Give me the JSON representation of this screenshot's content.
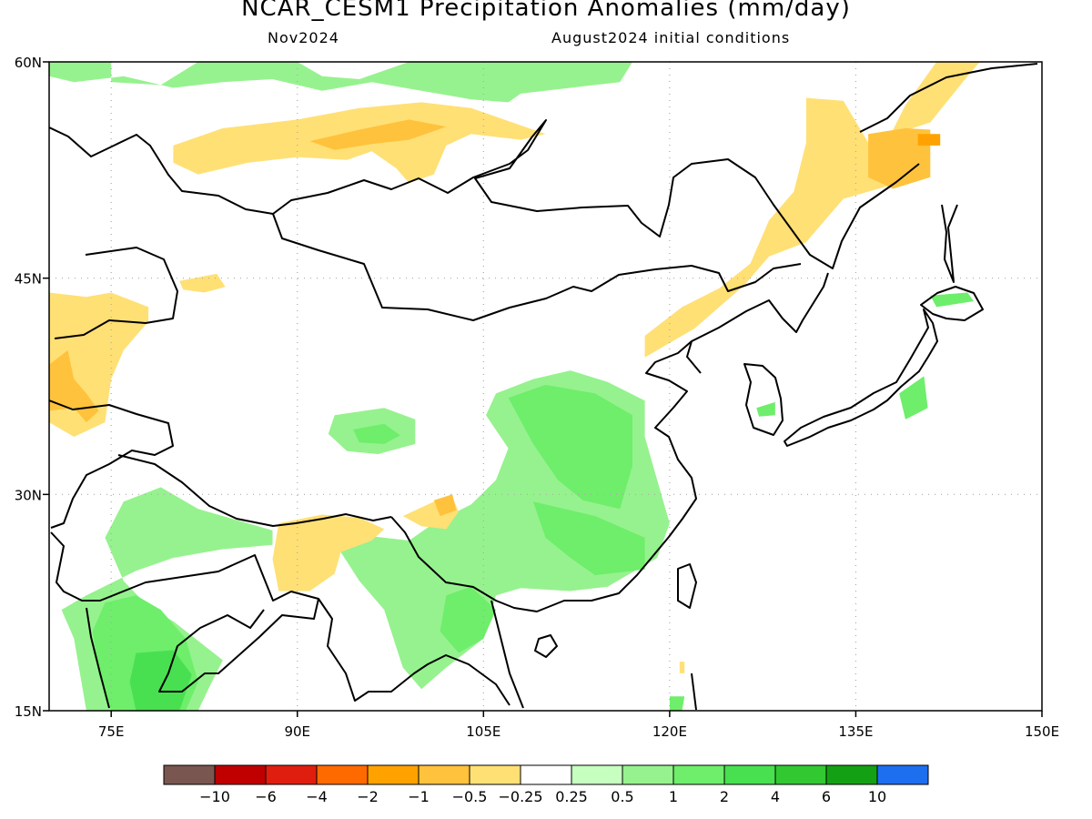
{
  "header": {
    "title": "NCAR_CESM1 Precipitation Anomalies (mm/day)",
    "valid_month": "Nov2024",
    "init": "August2024 initial conditions"
  },
  "map": {
    "lon_range": [
      70,
      150
    ],
    "lat_range": [
      15,
      60
    ],
    "lat_ticks": [
      {
        "v": 15,
        "t": "15N"
      },
      {
        "v": 30,
        "t": "30N"
      },
      {
        "v": 45,
        "t": "45N"
      },
      {
        "v": 60,
        "t": "60N"
      }
    ],
    "lon_ticks": [
      {
        "v": 75,
        "t": "75E"
      },
      {
        "v": 90,
        "t": "90E"
      },
      {
        "v": 105,
        "t": "105E"
      },
      {
        "v": 120,
        "t": "120E"
      },
      {
        "v": 135,
        "t": "135E"
      },
      {
        "v": 150,
        "t": "150E"
      }
    ],
    "anomaly_regions": [
      {
        "name": "siberia-north-wet",
        "value": 0.5,
        "lonlat": [
          [
            70,
            60
          ],
          [
            75,
            60
          ],
          [
            75,
            58.6
          ],
          [
            79,
            58.4
          ],
          [
            82,
            60
          ],
          [
            90,
            60
          ],
          [
            92,
            59
          ],
          [
            95,
            58.8
          ],
          [
            99,
            60
          ],
          [
            117,
            60
          ],
          [
            116,
            58.6
          ],
          [
            112,
            58.2
          ],
          [
            108,
            57.8
          ],
          [
            107,
            57.2
          ],
          [
            104,
            57.4
          ],
          [
            100,
            58
          ],
          [
            96,
            58.6
          ],
          [
            92,
            58
          ],
          [
            88,
            58.8
          ],
          [
            84,
            58.6
          ],
          [
            80,
            58.2
          ],
          [
            76,
            59
          ],
          [
            72,
            58.6
          ],
          [
            70,
            59
          ]
        ]
      },
      {
        "name": "mongolia-north-dry",
        "value": -0.5,
        "lonlat": [
          [
            80,
            54.2
          ],
          [
            84,
            55.4
          ],
          [
            90,
            56
          ],
          [
            95,
            56.8
          ],
          [
            100,
            57.2
          ],
          [
            104,
            56.8
          ],
          [
            108,
            55.6
          ],
          [
            110,
            55
          ],
          [
            108,
            54.6
          ],
          [
            104,
            55
          ],
          [
            102,
            54.2
          ],
          [
            101,
            52.2
          ],
          [
            99,
            51.6
          ],
          [
            98,
            52.6
          ],
          [
            96,
            53.8
          ],
          [
            94,
            53.2
          ],
          [
            90,
            53.4
          ],
          [
            86,
            53
          ],
          [
            82,
            52.2
          ],
          [
            80,
            53
          ]
        ]
      },
      {
        "name": "mongolia-north-dry-core",
        "value": -1,
        "lonlat": [
          [
            91,
            54.5
          ],
          [
            95,
            55.3
          ],
          [
            99,
            56
          ],
          [
            102,
            55.5
          ],
          [
            99,
            54.6
          ],
          [
            96,
            54.3
          ],
          [
            93,
            53.9
          ]
        ]
      },
      {
        "name": "manchuria-dry",
        "value": -0.5,
        "lonlat": [
          [
            131,
            57.5
          ],
          [
            134,
            57.3
          ],
          [
            136,
            54.4
          ],
          [
            141,
            55.8
          ],
          [
            144,
            59
          ],
          [
            145,
            60
          ],
          [
            141.5,
            60
          ],
          [
            139,
            57
          ],
          [
            138,
            55.3
          ],
          [
            138,
            51.5
          ],
          [
            134,
            50.5
          ],
          [
            131,
            47.5
          ],
          [
            128,
            46.5
          ],
          [
            126,
            44.5
          ],
          [
            124,
            43
          ],
          [
            122,
            41.5
          ],
          [
            118,
            39.5
          ],
          [
            118,
            41
          ],
          [
            121,
            43
          ],
          [
            124,
            44.3
          ],
          [
            126.5,
            46
          ],
          [
            128,
            49
          ],
          [
            130,
            51
          ],
          [
            131,
            54.4
          ]
        ]
      },
      {
        "name": "okhotsk-dry-core",
        "value": -1,
        "lonlat": [
          [
            136,
            55
          ],
          [
            139,
            55.4
          ],
          [
            141,
            55.3
          ],
          [
            141,
            52
          ],
          [
            138,
            51.2
          ],
          [
            136,
            52
          ]
        ]
      },
      {
        "name": "okhotsk-dry-patch",
        "value": -2,
        "lonlat": [
          [
            140,
            55
          ],
          [
            141.8,
            55
          ],
          [
            141.8,
            54.2
          ],
          [
            140,
            54.2
          ]
        ]
      },
      {
        "name": "central-asia-dry",
        "value": -0.5,
        "lonlat": [
          [
            70,
            44
          ],
          [
            73,
            43.7
          ],
          [
            75,
            44
          ],
          [
            78,
            43
          ],
          [
            78,
            42
          ],
          [
            76,
            40
          ],
          [
            75,
            38
          ],
          [
            74.5,
            35
          ],
          [
            72,
            34
          ],
          [
            70,
            35
          ]
        ]
      },
      {
        "name": "central-asia-dry-core",
        "value": -1,
        "lonlat": [
          [
            70,
            39
          ],
          [
            71.5,
            40
          ],
          [
            72,
            38
          ],
          [
            73,
            37
          ],
          [
            74,
            35.8
          ],
          [
            73,
            35
          ],
          [
            72,
            36
          ],
          [
            70,
            35.8
          ]
        ]
      },
      {
        "name": "kazakh-dry",
        "value": -0.5,
        "lonlat": [
          [
            80.5,
            44.8
          ],
          [
            83.5,
            45.3
          ],
          [
            84.2,
            44.4
          ],
          [
            82.5,
            44
          ],
          [
            80.8,
            44.2
          ]
        ]
      },
      {
        "name": "tibet-wet",
        "value": 0.5,
        "lonlat": [
          [
            93,
            35.5
          ],
          [
            97,
            36
          ],
          [
            99.5,
            35.2
          ],
          [
            99.5,
            33.5
          ],
          [
            96.5,
            32.8
          ],
          [
            94,
            33
          ],
          [
            92.5,
            34.2
          ]
        ]
      },
      {
        "name": "tibet-wet-core",
        "value": 1,
        "lonlat": [
          [
            94.5,
            34.5
          ],
          [
            97,
            34.9
          ],
          [
            98.3,
            34.1
          ],
          [
            97,
            33.5
          ],
          [
            95,
            33.6
          ]
        ]
      },
      {
        "name": "china-wet",
        "value": 0.5,
        "lonlat": [
          [
            106,
            37
          ],
          [
            109,
            38
          ],
          [
            112,
            38.6
          ],
          [
            115,
            37.8
          ],
          [
            118,
            36.5
          ],
          [
            118,
            34
          ],
          [
            119,
            31
          ],
          [
            120,
            28
          ],
          [
            119,
            25.6
          ],
          [
            115,
            23.6
          ],
          [
            112,
            23.3
          ],
          [
            108,
            23.5
          ],
          [
            106,
            23
          ],
          [
            105,
            20
          ],
          [
            102,
            18
          ],
          [
            100,
            16.5
          ],
          [
            98.5,
            18
          ],
          [
            97,
            22
          ],
          [
            95,
            24
          ],
          [
            93.5,
            26
          ],
          [
            95,
            27.2
          ],
          [
            97,
            27
          ],
          [
            99,
            26.8
          ],
          [
            101,
            28
          ],
          [
            104,
            29.3
          ],
          [
            106,
            31
          ],
          [
            107,
            33.2
          ],
          [
            105.2,
            35.5
          ]
        ]
      },
      {
        "name": "china-wet-core",
        "value": 1,
        "lonlat": [
          [
            107,
            36.7
          ],
          [
            110,
            37.6
          ],
          [
            114,
            37
          ],
          [
            117,
            35.5
          ],
          [
            117,
            32
          ],
          [
            116,
            29
          ],
          [
            113,
            29.6
          ],
          [
            111,
            31
          ],
          [
            109,
            33.5
          ]
        ]
      },
      {
        "name": "south-china-wet-core",
        "value": 1,
        "lonlat": [
          [
            109,
            29.5
          ],
          [
            114,
            28.5
          ],
          [
            118,
            27
          ],
          [
            118,
            24.8
          ],
          [
            114,
            24.4
          ],
          [
            112,
            25.6
          ],
          [
            110,
            27
          ]
        ]
      },
      {
        "name": "indochina-wet-core",
        "value": 1,
        "lonlat": [
          [
            102,
            23
          ],
          [
            104,
            23.6
          ],
          [
            106,
            22
          ],
          [
            105,
            20
          ],
          [
            103,
            19
          ],
          [
            101.5,
            20.5
          ]
        ]
      },
      {
        "name": "india-wet",
        "value": 0.5,
        "lonlat": [
          [
            76,
            29.5
          ],
          [
            79,
            30.5
          ],
          [
            82,
            29
          ],
          [
            86,
            28
          ],
          [
            88,
            27.5
          ],
          [
            88,
            26.5
          ],
          [
            84,
            26.2
          ],
          [
            80,
            25.6
          ],
          [
            77,
            24.7
          ],
          [
            73,
            23
          ],
          [
            71,
            22
          ],
          [
            72,
            20
          ],
          [
            73,
            15
          ],
          [
            82,
            15
          ],
          [
            83,
            16.8
          ],
          [
            84,
            18.5
          ],
          [
            80,
            21.2
          ],
          [
            78,
            22.2
          ],
          [
            76,
            24
          ],
          [
            74.5,
            27
          ]
        ]
      },
      {
        "name": "india-wet-core",
        "value": 1,
        "lonlat": [
          [
            74.5,
            22.5
          ],
          [
            77,
            23
          ],
          [
            79,
            22
          ],
          [
            81,
            20
          ],
          [
            82,
            17
          ],
          [
            81,
            15
          ],
          [
            75,
            15
          ],
          [
            74,
            17.5
          ],
          [
            73.5,
            20.5
          ]
        ]
      },
      {
        "name": "india-wet-strong",
        "value": 2,
        "lonlat": [
          [
            77,
            19
          ],
          [
            80,
            19.2
          ],
          [
            81.5,
            17.5
          ],
          [
            80.5,
            15
          ],
          [
            77,
            15
          ],
          [
            76.5,
            17
          ]
        ]
      },
      {
        "name": "bengal-dry",
        "value": -0.5,
        "lonlat": [
          [
            88.5,
            28
          ],
          [
            92,
            28.6
          ],
          [
            95,
            28.4
          ],
          [
            97,
            27.6
          ],
          [
            96,
            26.8
          ],
          [
            93.5,
            26
          ],
          [
            93,
            24.5
          ],
          [
            91,
            23.3
          ],
          [
            88.5,
            23.3
          ],
          [
            88,
            25.5
          ]
        ]
      },
      {
        "name": "yunnan-dry",
        "value": -0.5,
        "lonlat": [
          [
            98.5,
            28.5
          ],
          [
            101,
            29.5
          ],
          [
            102.5,
            29.8
          ],
          [
            103,
            28.8
          ],
          [
            102,
            27.6
          ],
          [
            100,
            27.8
          ]
        ]
      },
      {
        "name": "yunnan-dry-core",
        "value": -1,
        "lonlat": [
          [
            101,
            29.6
          ],
          [
            102.5,
            30
          ],
          [
            102.8,
            28.9
          ],
          [
            101.5,
            28.5
          ]
        ]
      },
      {
        "name": "hokkaido-wet",
        "value": 1,
        "lonlat": [
          [
            141,
            43.8
          ],
          [
            144,
            44
          ],
          [
            144.5,
            43.4
          ],
          [
            141.5,
            43
          ]
        ]
      },
      {
        "name": "honshu-wet",
        "value": 1,
        "lonlat": [
          [
            138.5,
            37
          ],
          [
            140.5,
            38.2
          ],
          [
            140.8,
            36
          ],
          [
            139,
            35.2
          ]
        ]
      },
      {
        "name": "korea-wet",
        "value": 1,
        "lonlat": [
          [
            127,
            36
          ],
          [
            128.5,
            36.4
          ],
          [
            128.5,
            35.5
          ],
          [
            127.2,
            35.4
          ]
        ]
      },
      {
        "name": "taiwan-dry",
        "value": -0.5,
        "lonlat": [
          [
            120.8,
            18.4
          ],
          [
            121.2,
            18.4
          ],
          [
            121.2,
            17.6
          ],
          [
            120.8,
            17.6
          ]
        ]
      },
      {
        "name": "philippine-wet",
        "value": 1,
        "lonlat": [
          [
            120,
            15
          ],
          [
            121,
            15
          ],
          [
            121.2,
            16
          ],
          [
            120,
            16
          ]
        ]
      }
    ]
  },
  "colorbar": {
    "colors": [
      "#7a5650",
      "#c00000",
      "#e01e10",
      "#ff6a00",
      "#ffa200",
      "#ffc23c",
      "#ffe075",
      "#ffffff",
      "#c6ffc0",
      "#96f28e",
      "#6eee6b",
      "#48e050",
      "#32c832",
      "#14a014",
      "#1e6ef0"
    ],
    "labels": [
      "-10",
      "-6",
      "-4",
      "-2",
      "-1",
      "-0.5",
      "-0.25",
      "0.25",
      "0.5",
      "1",
      "2",
      "4",
      "6",
      "10"
    ]
  }
}
